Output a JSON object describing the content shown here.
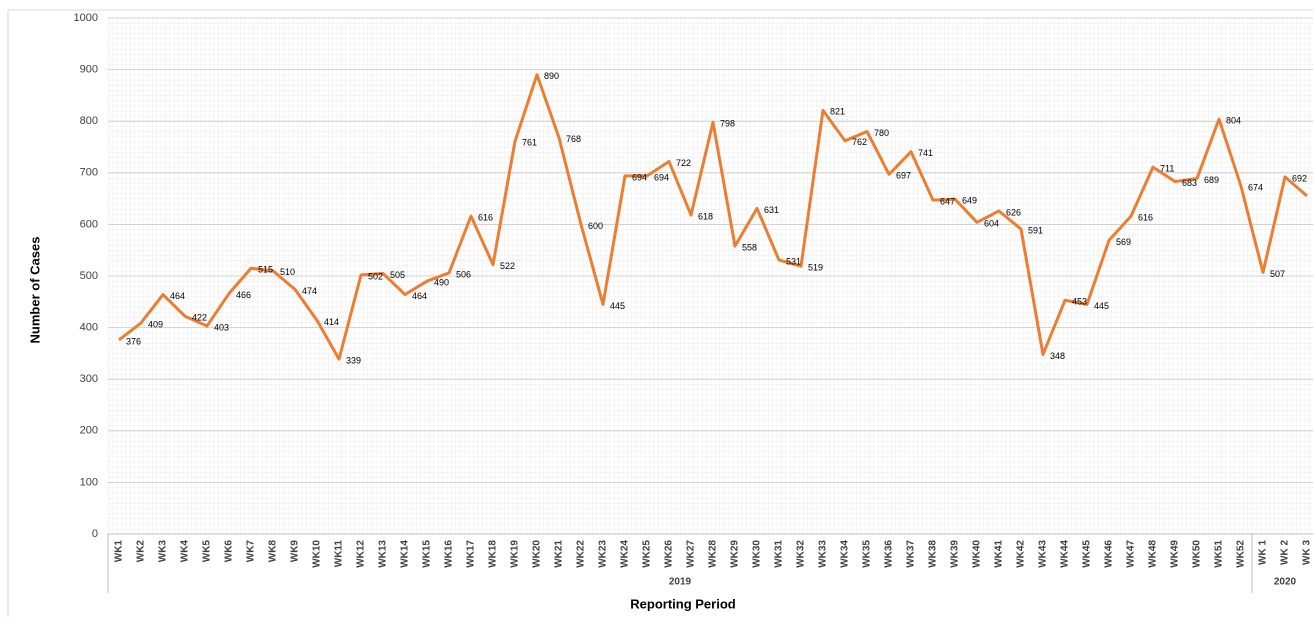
{
  "chart_data": {
    "type": "line",
    "x_label": "Reporting Period",
    "y_label": "Number of Cases",
    "categories": [
      "WK1",
      "WK2",
      "WK3",
      "WK4",
      "WK5",
      "WK6",
      "WK7",
      "WK8",
      "WK9",
      "WK10",
      "WK11",
      "WK12",
      "WK13",
      "WK14",
      "WK15",
      "WK16",
      "WK17",
      "WK18",
      "WK19",
      "WK20",
      "WK21",
      "WK22",
      "WK23",
      "WK24",
      "WK25",
      "WK26",
      "WK27",
      "WK28",
      "WK29",
      "WK30",
      "WK31",
      "WK32",
      "WK33",
      "WK34",
      "WK35",
      "WK36",
      "WK37",
      "WK38",
      "WK39",
      "WK40",
      "WK41",
      "WK42",
      "WK43",
      "WK44",
      "WK45",
      "WK46",
      "WK47",
      "WK48",
      "WK49",
      "WK50",
      "WK51",
      "WK52",
      "WK 1",
      "WK 2",
      "WK 3"
    ],
    "groups": [
      {
        "label": "2019",
        "count": 52
      },
      {
        "label": "2020",
        "count": 3
      }
    ],
    "series": [
      {
        "color": "#ed7d31",
        "values": [
          376,
          409,
          464,
          422,
          403,
          466,
          515,
          510,
          474,
          414,
          339,
          502,
          505,
          464,
          490,
          506,
          616,
          522,
          761,
          890,
          768,
          600,
          445,
          694,
          694,
          722,
          618,
          798,
          558,
          631,
          531,
          519,
          821,
          762,
          780,
          697,
          741,
          647,
          649,
          604,
          626,
          591,
          348,
          453,
          445,
          569,
          616,
          711,
          683,
          689,
          804,
          674,
          507,
          692,
          655
        ]
      }
    ],
    "ylim": [
      0,
      1000
    ],
    "yticks": [
      0,
      100,
      200,
      300,
      400,
      500,
      600,
      700,
      800,
      900,
      1000
    ],
    "grid": true
  }
}
